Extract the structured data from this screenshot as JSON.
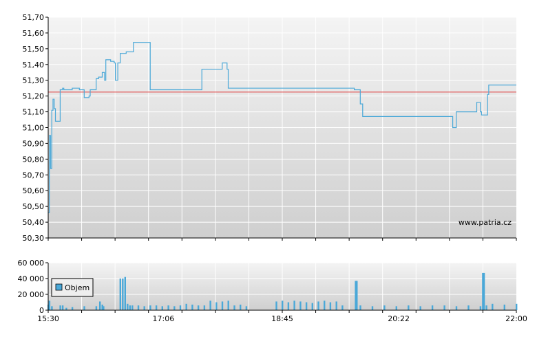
{
  "watermark": "www.patria.cz",
  "colors": {
    "price_line": "#4aa8d8",
    "reference_line": "#e04040",
    "volume_bar": "#4aa8d8",
    "grid": "#ffffff",
    "panel_top": "#f4f4f4",
    "panel_bottom": "#cfcfcf",
    "axis": "#000000"
  },
  "chart_data": [
    {
      "type": "line",
      "title": "",
      "xlabel": "",
      "ylabel": "",
      "xlim": [
        "15:30",
        "22:00"
      ],
      "ylim": [
        50.3,
        51.7
      ],
      "y_ticks": [
        "51,70",
        "51,60",
        "51,50",
        "51,40",
        "51,30",
        "51,20",
        "51,10",
        "51,00",
        "50,90",
        "50,80",
        "50,70",
        "50,60",
        "50,50",
        "50,40",
        "50,30"
      ],
      "grid": true,
      "reference_line": 51.225,
      "series": [
        {
          "x": [
            "15:30",
            "15:31",
            "15:32",
            "15:33",
            "15:34",
            "15:35",
            "15:36",
            "15:37",
            "15:38",
            "15:39",
            "15:40",
            "15:42",
            "15:43",
            "15:45",
            "15:48",
            "15:49",
            "15:50",
            "15:52",
            "15:54",
            "15:56",
            "16:00",
            "16:02",
            "16:04",
            "16:05",
            "16:06",
            "16:08",
            "16:10",
            "16:12",
            "16:13",
            "16:15",
            "16:16",
            "16:17",
            "16:18",
            "16:20",
            "16:22",
            "16:25",
            "16:26",
            "16:28",
            "16:30",
            "16:35",
            "16:38",
            "16:39",
            "16:41",
            "16:42",
            "16:43",
            "16:44",
            "16:48",
            "16:55",
            "16:56",
            "17:01",
            "17:06",
            "17:10",
            "17:36",
            "17:38",
            "17:45",
            "17:47",
            "17:55",
            "17:58",
            "17:59",
            "18:00",
            "18:30",
            "19:00",
            "19:30",
            "19:38",
            "19:45",
            "19:49",
            "19:50",
            "19:51",
            "19:52",
            "20:00",
            "20:30",
            "20:55",
            "21:05",
            "21:06",
            "21:07",
            "21:10",
            "21:25",
            "21:26",
            "21:27",
            "21:30",
            "21:31",
            "21:35",
            "21:36",
            "21:37",
            "22:00"
          ],
          "y": [
            50.46,
            50.95,
            50.74,
            51.11,
            51.18,
            51.12,
            51.04,
            51.04,
            51.04,
            51.04,
            51.24,
            51.25,
            51.24,
            51.24,
            51.24,
            51.24,
            51.25,
            51.25,
            51.25,
            51.24,
            51.19,
            51.19,
            51.2,
            51.24,
            51.24,
            51.24,
            51.31,
            51.32,
            51.32,
            51.35,
            51.35,
            51.3,
            51.43,
            51.43,
            51.42,
            51.41,
            51.3,
            51.41,
            51.47,
            51.48,
            51.48,
            51.48,
            51.54,
            51.54,
            51.54,
            51.54,
            51.54,
            51.24,
            51.24,
            51.24,
            51.24,
            51.24,
            51.24,
            51.37,
            51.37,
            51.37,
            51.41,
            51.41,
            51.37,
            51.25,
            51.25,
            51.25,
            51.25,
            51.25,
            51.24,
            51.24,
            51.15,
            51.15,
            51.07,
            51.07,
            51.07,
            51.07,
            51.07,
            51.07,
            51.0,
            51.1,
            51.1,
            51.1,
            51.16,
            51.1,
            51.08,
            51.08,
            51.21,
            51.27,
            51.27
          ]
        }
      ]
    },
    {
      "type": "bar",
      "title": "",
      "xlabel": "",
      "ylabel": "",
      "xlim": [
        "15:30",
        "22:00"
      ],
      "ylim": [
        0,
        60000
      ],
      "y_ticks": [
        "60 000",
        "40 000",
        "20 000",
        "0"
      ],
      "x_ticks": [
        "15:30",
        "17:06",
        "18:45",
        "20:22",
        "22:00"
      ],
      "grid": true,
      "legend": {
        "placement": "top-left",
        "entries": [
          "Objem"
        ]
      },
      "series": [
        {
          "name": "Objem",
          "x": [
            "15:30",
            "15:31",
            "15:33",
            "15:40",
            "15:42",
            "15:45",
            "15:50",
            "16:00",
            "16:10",
            "16:13",
            "16:15",
            "16:16",
            "16:30",
            "16:32",
            "16:34",
            "16:36",
            "16:38",
            "16:40",
            "16:45",
            "16:50",
            "16:55",
            "17:00",
            "17:05",
            "17:10",
            "17:15",
            "17:20",
            "17:25",
            "17:30",
            "17:35",
            "17:40",
            "17:45",
            "17:50",
            "17:55",
            "18:00",
            "18:05",
            "18:10",
            "18:15",
            "18:40",
            "18:45",
            "18:50",
            "18:55",
            "19:00",
            "19:05",
            "19:10",
            "19:15",
            "19:20",
            "19:25",
            "19:30",
            "19:35",
            "19:46",
            "19:47",
            "19:50",
            "20:00",
            "20:10",
            "20:20",
            "20:30",
            "20:40",
            "20:50",
            "21:00",
            "21:10",
            "21:20",
            "21:30",
            "21:32",
            "21:33",
            "21:35",
            "21:40",
            "21:50",
            "22:00"
          ],
          "values": [
            7000,
            12000,
            5000,
            6000,
            6000,
            3000,
            4000,
            5000,
            5000,
            11000,
            7000,
            5000,
            40000,
            40000,
            42000,
            8000,
            6000,
            6000,
            6000,
            5000,
            6000,
            6000,
            5000,
            6000,
            5000,
            6000,
            8000,
            7000,
            6000,
            6000,
            12000,
            10000,
            11000,
            12000,
            6000,
            7000,
            5000,
            11000,
            12000,
            10000,
            12000,
            11000,
            10000,
            9000,
            11000,
            12000,
            10000,
            11000,
            6000,
            37000,
            37000,
            6000,
            5000,
            6000,
            5000,
            6000,
            5000,
            6000,
            6000,
            5000,
            6000,
            5000,
            47000,
            47000,
            6000,
            8000,
            7000,
            8000
          ]
        }
      ]
    }
  ]
}
